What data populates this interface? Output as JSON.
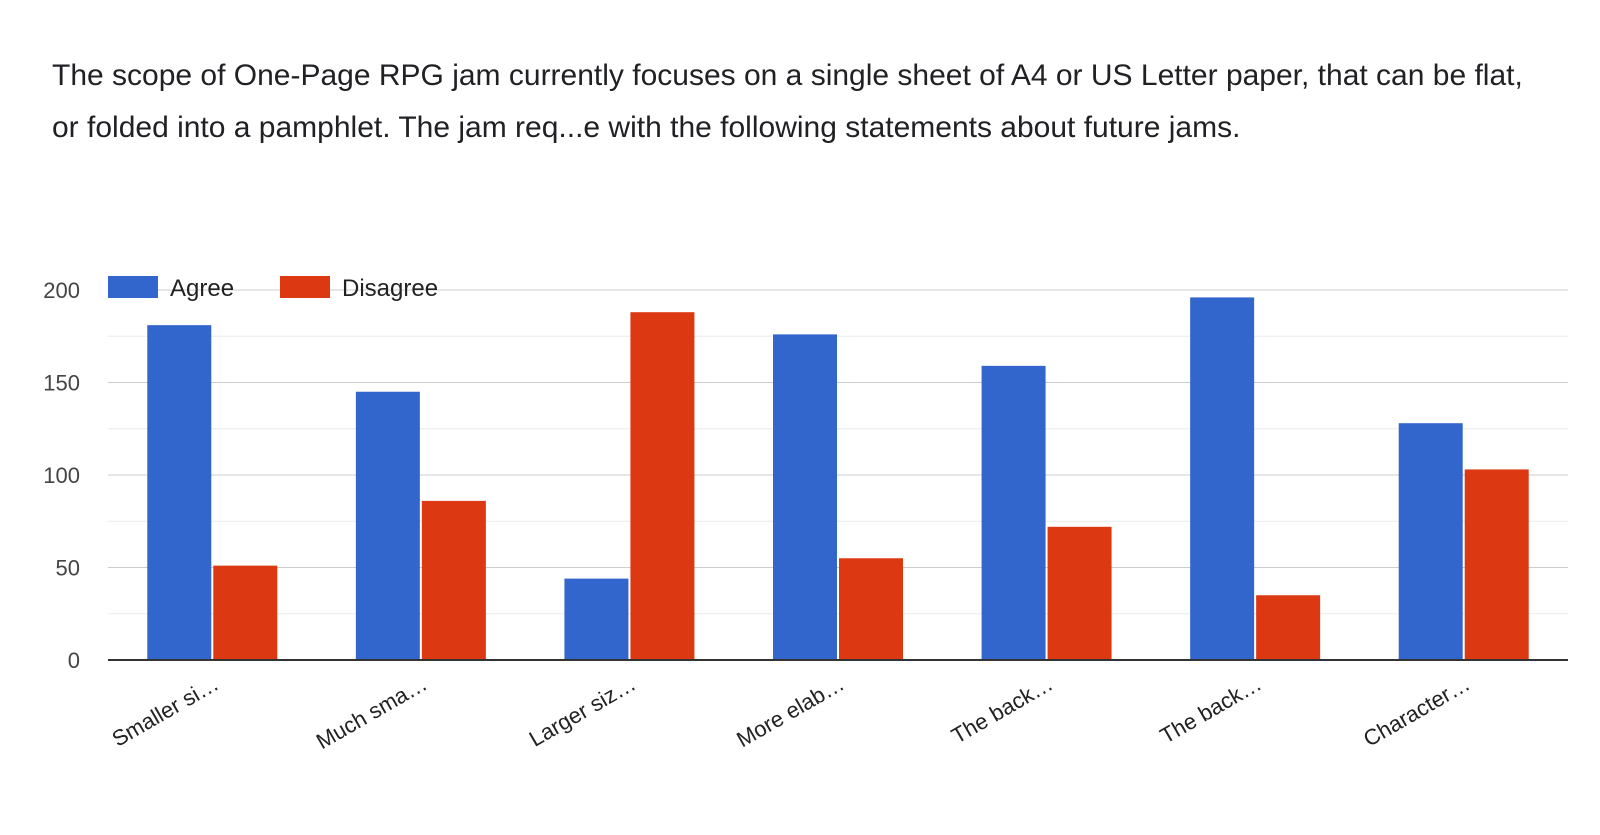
{
  "question": {
    "title": "The scope of One-Page RPG jam currently focuses on a single sheet of A4 or US Letter paper, that can be flat, or folded into a pamphlet. The jam req...e with the following statements about future jams."
  },
  "chart_data": {
    "type": "bar",
    "categories": [
      "Smaller si…",
      "Much sma…",
      "Larger siz…",
      "More elab…",
      "The back…",
      "The back…",
      "Character…"
    ],
    "series": [
      {
        "name": "Agree",
        "color": "#3366cc",
        "values": [
          181,
          145,
          44,
          176,
          159,
          196,
          128
        ]
      },
      {
        "name": "Disagree",
        "color": "#dc3912",
        "values": [
          51,
          86,
          188,
          55,
          72,
          35,
          103
        ]
      }
    ],
    "yticks": [
      0,
      50,
      100,
      150,
      200
    ],
    "ylim": [
      0,
      200
    ],
    "grid": true,
    "legend_position": "top-left"
  }
}
